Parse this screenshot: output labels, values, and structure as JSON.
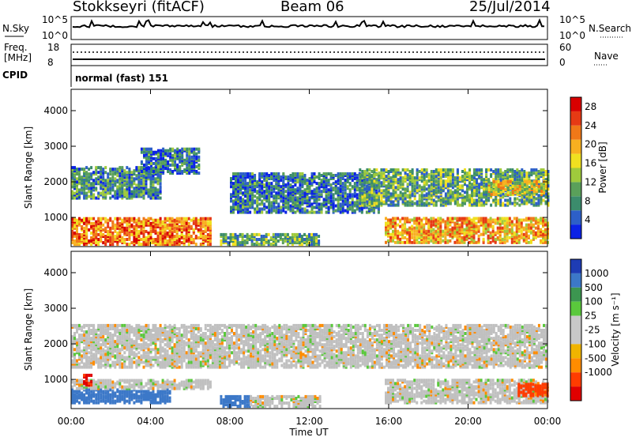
{
  "header": {
    "station": "Stokkseyri (fitACF)",
    "beam": "Beam 06",
    "date": "25/Jul/2014"
  },
  "top_panels": {
    "nsky_label": "N.Sky",
    "nsky_ticks": [
      "10^5",
      "10^0"
    ],
    "nsearch_label": "N.Search",
    "nsearch_ticks": [
      "10^5",
      "10^0"
    ],
    "freq_label_1": "Freq.",
    "freq_label_2": "[MHz]",
    "freq_ticks": [
      "18",
      "8"
    ],
    "nave_label": "Nave",
    "nave_ticks": [
      "60",
      "0"
    ],
    "cpid_label": "CPID",
    "cpid_value": "normal (fast) 151"
  },
  "colors": {
    "power_scale": [
      "#0b22e6",
      "#2d5fc8",
      "#3b8c6c",
      "#5aa05a",
      "#9fca3c",
      "#f0e020",
      "#f8b020",
      "#f07818",
      "#e63a14",
      "#d80000"
    ],
    "velocity_scale": [
      "#e00000",
      "#ff3c00",
      "#ff8c00",
      "#f0b400",
      "#c8c8c8",
      "#c8c8c8",
      "#5ac83c",
      "#3c9650",
      "#3c78c8",
      "#1e3cb4"
    ],
    "ground_scatter": "#c0c0c0"
  },
  "chart_data": [
    {
      "type": "heatmap",
      "title": "",
      "xlabel": "Time UT",
      "ylabel": "Slant Range [km]",
      "xlim_hours": [
        0,
        24
      ],
      "ylim": [
        180,
        4600
      ],
      "x_ticks": [
        "00:00",
        "04:00",
        "08:00",
        "12:00",
        "16:00",
        "20:00",
        "00:00"
      ],
      "y_ticks": [
        "1000",
        "2000",
        "3000",
        "4000"
      ],
      "colorbar": {
        "label": "Power [dB]",
        "range": [
          0,
          30
        ],
        "ticks": [
          "4",
          "8",
          "12",
          "16",
          "20",
          "24",
          "28"
        ]
      },
      "echo_regions": [
        {
          "t_start": 0.0,
          "t_end": 7.0,
          "range_lo": 200,
          "range_hi": 950,
          "power_db": 22
        },
        {
          "t_start": 0.0,
          "t_end": 4.5,
          "range_lo": 1500,
          "range_hi": 2400,
          "power_db": 8
        },
        {
          "t_start": 3.5,
          "t_end": 6.5,
          "range_lo": 2200,
          "range_hi": 2900,
          "power_db": 6
        },
        {
          "t_start": 7.5,
          "t_end": 12.5,
          "range_lo": 200,
          "range_hi": 500,
          "power_db": 10
        },
        {
          "t_start": 8.0,
          "t_end": 15.5,
          "range_lo": 1100,
          "range_hi": 2200,
          "power_db": 6
        },
        {
          "t_start": 15.8,
          "t_end": 24.0,
          "range_lo": 250,
          "range_hi": 950,
          "power_db": 20
        },
        {
          "t_start": 14.5,
          "t_end": 24.0,
          "range_lo": 1300,
          "range_hi": 2300,
          "power_db": 10
        },
        {
          "t_start": 21.0,
          "t_end": 24.0,
          "range_lo": 1600,
          "range_hi": 2000,
          "power_db": 16
        }
      ]
    },
    {
      "type": "heatmap",
      "title": "",
      "xlabel": "Time UT",
      "ylabel": "Slant Range [km]",
      "xlim_hours": [
        0,
        24
      ],
      "ylim": [
        180,
        4600
      ],
      "x_ticks": [
        "00:00",
        "04:00",
        "08:00",
        "12:00",
        "16:00",
        "20:00",
        "00:00"
      ],
      "y_ticks": [
        "1000",
        "2000",
        "3000",
        "4000"
      ],
      "colorbar": {
        "label": "Velocity [m s⁻¹]",
        "ticks": [
          "1000",
          "500",
          "100",
          "25",
          "-25",
          "-100",
          "-500",
          "-1000"
        ]
      },
      "echo_regions": [
        {
          "t_start": 0.0,
          "t_end": 5.0,
          "range_lo": 300,
          "range_hi": 700,
          "velocity": 150
        },
        {
          "t_start": 0.0,
          "t_end": 7.0,
          "range_lo": 700,
          "range_hi": 950,
          "velocity": 0
        },
        {
          "t_start": 7.5,
          "t_end": 9.0,
          "range_lo": 200,
          "range_hi": 500,
          "velocity": 150
        },
        {
          "t_start": 9.0,
          "t_end": 12.5,
          "range_lo": 200,
          "range_hi": 500,
          "velocity": 0
        },
        {
          "t_start": 0.0,
          "t_end": 24.0,
          "range_lo": 1300,
          "range_hi": 2500,
          "velocity": 0
        },
        {
          "t_start": 15.8,
          "t_end": 24.0,
          "range_lo": 300,
          "range_hi": 950,
          "velocity": 0
        },
        {
          "t_start": 22.5,
          "t_end": 24.0,
          "range_lo": 500,
          "range_hi": 850,
          "velocity": -400
        },
        {
          "t_start": 0.6,
          "t_end": 1.0,
          "range_lo": 800,
          "range_hi": 1100,
          "velocity": -500
        }
      ]
    }
  ]
}
